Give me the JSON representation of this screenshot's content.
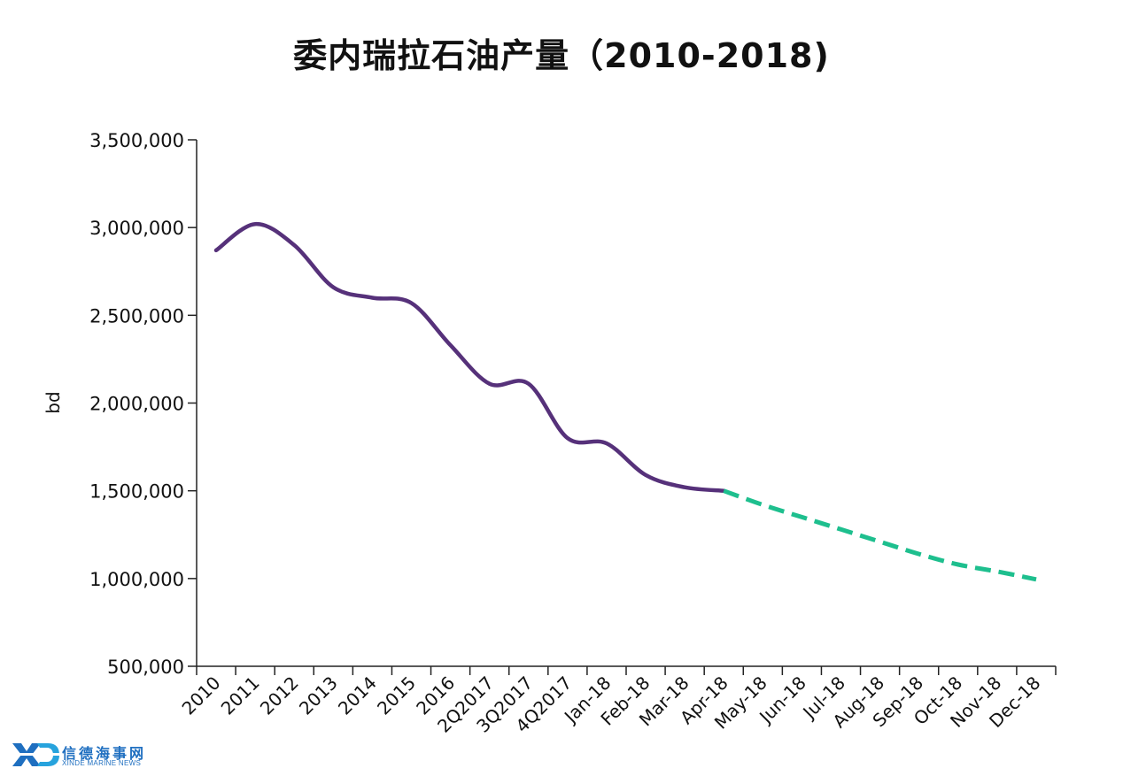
{
  "chart_data": {
    "type": "line",
    "title": "委内瑞拉石油产量（2010-2018)",
    "ylabel": "bd",
    "ylim": [
      500000,
      3500000
    ],
    "yticks": [
      500000,
      1000000,
      1500000,
      2000000,
      2500000,
      3000000,
      3500000
    ],
    "ytick_labels": [
      "500,000",
      "1,000,000",
      "1,500,000",
      "2,000,000",
      "2,500,000",
      "3,000,000",
      "3,500,000"
    ],
    "categories": [
      "2010",
      "2011",
      "2012",
      "2013",
      "2014",
      "2015",
      "2016",
      "2Q2017",
      "3Q2017",
      "4Q2017",
      "Jan-18",
      "Feb-18",
      "Mar-18",
      "Apr-18",
      "May-18",
      "Jun-18",
      "Jul-18",
      "Aug-18",
      "Sep-18",
      "Oct-18",
      "Nov-18",
      "Dec-18"
    ],
    "series": [
      {
        "style": "solid",
        "color": "#56317a",
        "values": [
          2870000,
          3020000,
          2900000,
          2660000,
          2600000,
          2570000,
          2330000,
          2110000,
          2110000,
          1800000,
          1770000,
          1590000,
          1520000,
          1500000,
          null,
          null,
          null,
          null,
          null,
          null,
          null,
          null
        ]
      },
      {
        "style": "dashed",
        "color": "#1ebf8e",
        "values": [
          null,
          null,
          null,
          null,
          null,
          null,
          null,
          null,
          null,
          null,
          null,
          null,
          null,
          1500000,
          1420000,
          1350000,
          1280000,
          1210000,
          1140000,
          1080000,
          1040000,
          995000
        ]
      }
    ],
    "grid": false,
    "legend": "none"
  },
  "logo": {
    "mark": "XD",
    "name_cn": "信德海事网",
    "name_en": "XINDE MARINE NEWS",
    "color": "#1f6fc0"
  }
}
